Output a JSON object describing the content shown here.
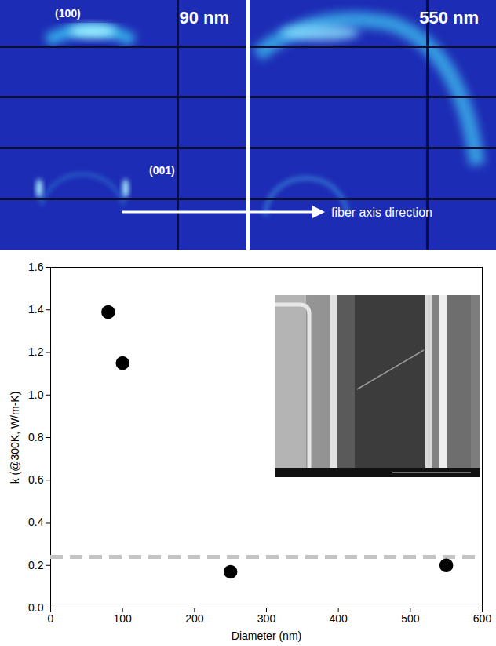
{
  "figure": {
    "panels": [
      {
        "label": "90 nm",
        "reflections": [
          "(100)",
          "(001)"
        ]
      },
      {
        "label": "550 nm"
      }
    ],
    "arrow_label": "fiber axis direction"
  },
  "chart_data": {
    "type": "scatter",
    "x_label": "Diameter (nm)",
    "y_label": "k (@300K, W/m-K)",
    "x": [
      80,
      100,
      250,
      550
    ],
    "values": [
      1.39,
      1.15,
      0.17,
      0.2
    ],
    "color": "#000000",
    "marker": "circle",
    "hline": {
      "value": 0.24,
      "color": "#c4c4c4",
      "line_style": "dashed"
    },
    "xlim": [
      0,
      600
    ],
    "xticks": [
      0,
      100,
      200,
      300,
      400,
      500,
      600
    ],
    "ylim": [
      0,
      1.6
    ],
    "yticks": [
      {
        "value": 0,
        "label": "0.0"
      },
      0.2,
      0.4,
      0.6,
      0.8,
      {
        "value": 1,
        "label": "1.0"
      },
      1.2,
      1.4,
      1.6
    ],
    "grid": false
  }
}
